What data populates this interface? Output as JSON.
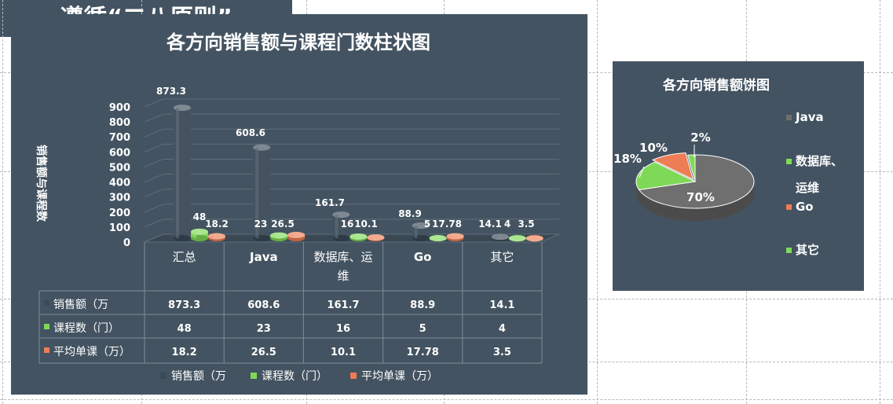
{
  "bar_chart": {
    "title": "各方向销售额与课程门数柱状图",
    "ylabel": "销售额与课程数",
    "yticks": [
      "0",
      "100",
      "200",
      "300",
      "400",
      "500",
      "600",
      "700",
      "800",
      "900"
    ],
    "categories": [
      "汇总",
      "Java",
      "数据库、运维",
      "Go",
      "其它"
    ],
    "category_lines": [
      [
        "汇总"
      ],
      [
        "Java"
      ],
      [
        "数据库、运",
        "维"
      ],
      [
        "Go"
      ],
      [
        "其它"
      ]
    ],
    "series": [
      {
        "name": "销售额（万）",
        "color": "#3a4a57",
        "values": [
          873.3,
          608.6,
          161.7,
          88.9,
          14.1
        ],
        "labels": [
          "873.3",
          "608.6",
          "161.7",
          "88.9",
          "14.1"
        ]
      },
      {
        "name": "课程数（门）",
        "color": "#7ed957",
        "values": [
          48,
          23,
          16,
          5,
          4
        ],
        "labels": [
          "48",
          "23",
          "16",
          "5",
          "4"
        ]
      },
      {
        "name": "平均单课（万）",
        "color": "#ed7d54",
        "values": [
          18.2,
          26.5,
          10.1,
          17.78,
          3.5
        ],
        "labels": [
          "18.2",
          "26.5",
          "10.1",
          "17.78",
          "3.5"
        ]
      }
    ],
    "table_series_labels": [
      "销售额（万",
      "课程数（门）",
      "平均单课（万）"
    ],
    "legend_labels": [
      "销售额（万",
      "课程数（门）",
      "平均单课（万）"
    ],
    "ylim": [
      0,
      900
    ]
  },
  "pie_chart": {
    "title": "各方向销售额饼图",
    "slices": [
      {
        "name": "Java",
        "value": 70,
        "label": "70%",
        "color": "#6f6f6f"
      },
      {
        "name": "数据库、运维",
        "value": 18,
        "label": "18%",
        "color": "#7ed957"
      },
      {
        "name": "Go",
        "value": 10,
        "label": "10%",
        "color": "#ed7d54"
      },
      {
        "name": "其它",
        "value": 2,
        "label": "2%",
        "color": "#7ed957"
      }
    ],
    "legend": [
      {
        "lines": [
          "Java"
        ],
        "color": "#6f6f6f"
      },
      {
        "lines": [
          "数据库、",
          "运维"
        ],
        "color": "#7ed957"
      },
      {
        "lines": [
          "Go"
        ],
        "color": "#ed7d54"
      },
      {
        "lines": [
          "其它"
        ],
        "color": "#7ed957"
      }
    ]
  },
  "slogan": "遵循“二八原则”",
  "chart_data": [
    {
      "type": "bar",
      "title": "各方向销售额与课程门数柱状图",
      "ylabel": "销售额与课程数",
      "categories": [
        "汇总",
        "Java",
        "数据库、运维",
        "Go",
        "其它"
      ],
      "series": [
        {
          "name": "销售额（万）",
          "values": [
            873.3,
            608.6,
            161.7,
            88.9,
            14.1
          ]
        },
        {
          "name": "课程数（门）",
          "values": [
            48,
            23,
            16,
            5,
            4
          ]
        },
        {
          "name": "平均单课（万）",
          "values": [
            18.2,
            26.5,
            10.1,
            17.78,
            3.5
          ]
        }
      ],
      "ylim": [
        0,
        900
      ],
      "grid": true,
      "legend": "bottom"
    },
    {
      "type": "pie",
      "title": "各方向销售额饼图",
      "categories": [
        "Java",
        "数据库、运维",
        "Go",
        "其它"
      ],
      "values": [
        70,
        18,
        10,
        2
      ],
      "legend": "right"
    }
  ]
}
